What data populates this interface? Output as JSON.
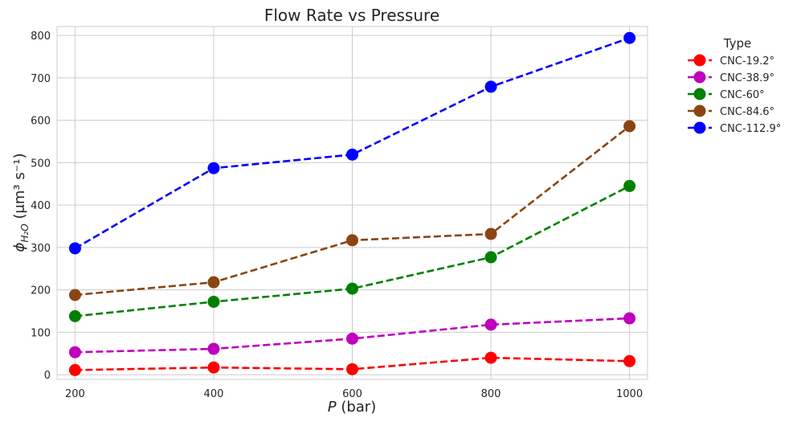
{
  "chart_data": {
    "type": "line",
    "title": "Flow Rate vs Pressure",
    "xlabel_italic": "P",
    "xlabel_rest": " (bar)",
    "ylabel_symbol": "ϕ",
    "ylabel_sub": "H₂O",
    "ylabel_rest": " (μm³ s⁻¹)",
    "x": [
      200,
      400,
      600,
      800,
      1000
    ],
    "xlim": [
      174,
      1026
    ],
    "ylim": [
      -11,
      821
    ],
    "xticks": [
      200,
      400,
      600,
      800,
      1000
    ],
    "yticks": [
      0,
      100,
      200,
      300,
      400,
      500,
      600,
      700,
      800
    ],
    "grid": true,
    "line_style": "dashed",
    "marker": "circle",
    "legend": {
      "title": "Type",
      "placement": "outside-right"
    },
    "series": [
      {
        "name": "CNC-19.2°",
        "color": "#ff0000",
        "values": [
          11,
          17,
          13,
          40,
          32
        ]
      },
      {
        "name": "CNC-38.9°",
        "color": "#bf00bf",
        "values": [
          53,
          61,
          85,
          118,
          133
        ]
      },
      {
        "name": "CNC-60°",
        "color": "#008000",
        "values": [
          138,
          172,
          203,
          277,
          445
        ]
      },
      {
        "name": "CNC-84.6°",
        "color": "#8b4513",
        "values": [
          188,
          218,
          317,
          332,
          586
        ]
      },
      {
        "name": "CNC-112.9°",
        "color": "#0000ff",
        "values": [
          298,
          487,
          519,
          679,
          794
        ]
      }
    ]
  }
}
